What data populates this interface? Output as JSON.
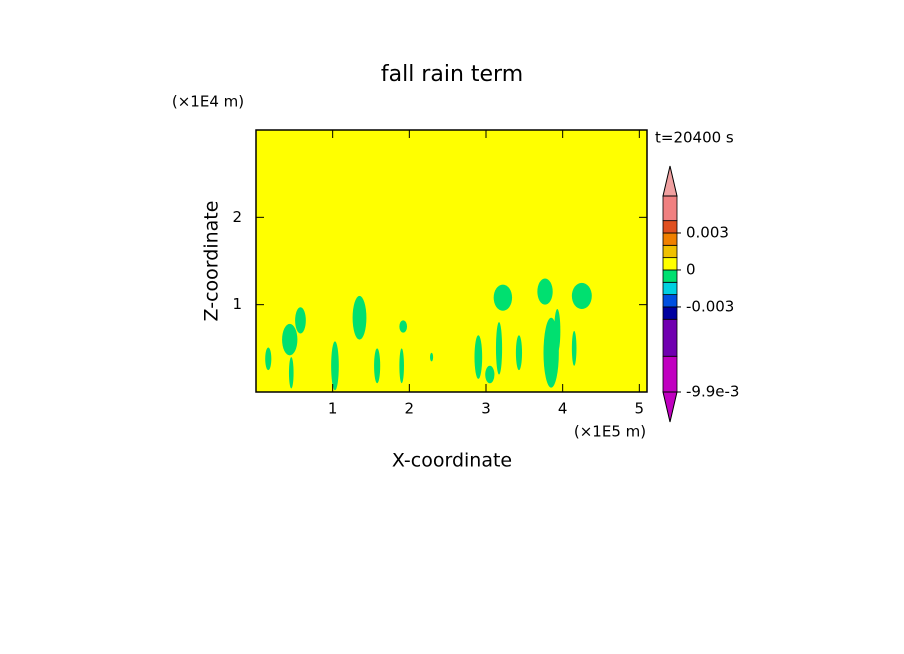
{
  "chart_data": {
    "type": "contour",
    "title": "fall rain term",
    "x_label": "X-coordinate",
    "y_label": "Z-coordinate",
    "x_unit": "(×1E5 m)",
    "y_unit": "(×1E4 m)",
    "annotation": "t=20400 s",
    "xlim": [
      0,
      5.1
    ],
    "ylim": [
      0,
      3
    ],
    "xticks": [
      1,
      2,
      3,
      4,
      5
    ],
    "yticks": [
      1,
      2
    ],
    "background_color": "#ffff00",
    "patch_color": "#00e070",
    "patches": [
      {
        "x": 0.16,
        "z": 0.38,
        "rx": 0.04,
        "rz": 0.13
      },
      {
        "x": 0.44,
        "z": 0.6,
        "rx": 0.1,
        "rz": 0.18
      },
      {
        "x": 0.58,
        "z": 0.82,
        "rx": 0.07,
        "rz": 0.15
      },
      {
        "x": 0.46,
        "z": 0.22,
        "rx": 0.03,
        "rz": 0.18
      },
      {
        "x": 1.03,
        "z": 0.3,
        "rx": 0.05,
        "rz": 0.28
      },
      {
        "x": 1.35,
        "z": 0.85,
        "rx": 0.09,
        "rz": 0.25
      },
      {
        "x": 1.58,
        "z": 0.3,
        "rx": 0.04,
        "rz": 0.2
      },
      {
        "x": 1.92,
        "z": 0.75,
        "rx": 0.05,
        "rz": 0.07
      },
      {
        "x": 1.9,
        "z": 0.3,
        "rx": 0.03,
        "rz": 0.2
      },
      {
        "x": 2.29,
        "z": 0.4,
        "rx": 0.02,
        "rz": 0.05
      },
      {
        "x": 2.9,
        "z": 0.4,
        "rx": 0.05,
        "rz": 0.25
      },
      {
        "x": 3.05,
        "z": 0.2,
        "rx": 0.06,
        "rz": 0.1
      },
      {
        "x": 3.22,
        "z": 1.08,
        "rx": 0.12,
        "rz": 0.15
      },
      {
        "x": 3.17,
        "z": 0.5,
        "rx": 0.04,
        "rz": 0.3
      },
      {
        "x": 3.77,
        "z": 1.15,
        "rx": 0.1,
        "rz": 0.15
      },
      {
        "x": 3.85,
        "z": 0.45,
        "rx": 0.1,
        "rz": 0.4
      },
      {
        "x": 3.93,
        "z": 0.7,
        "rx": 0.04,
        "rz": 0.25
      },
      {
        "x": 4.25,
        "z": 1.1,
        "rx": 0.13,
        "rz": 0.15
      },
      {
        "x": 4.15,
        "z": 0.5,
        "rx": 0.03,
        "rz": 0.2
      },
      {
        "x": 3.43,
        "z": 0.45,
        "rx": 0.04,
        "rz": 0.2
      }
    ],
    "colorbar": {
      "boundaries": [
        -0.0099,
        -0.007,
        -0.004,
        -0.003,
        -0.002,
        -0.001,
        0,
        0.001,
        0.002,
        0.003,
        0.004,
        0.006
      ],
      "colors": [
        "#c000c0",
        "#7000b0",
        "#0000a0",
        "#0050e0",
        "#00d0e0",
        "#00e070",
        "#ffff00",
        "#f0c000",
        "#f08000",
        "#e05020",
        "#f08080"
      ],
      "extend_colors": [
        "#c000c0",
        "#f0a0a0"
      ],
      "ticks": [
        0.003,
        0,
        -0.003,
        {
          "value": -0.0099,
          "label": "-9.9e-3"
        }
      ]
    }
  }
}
